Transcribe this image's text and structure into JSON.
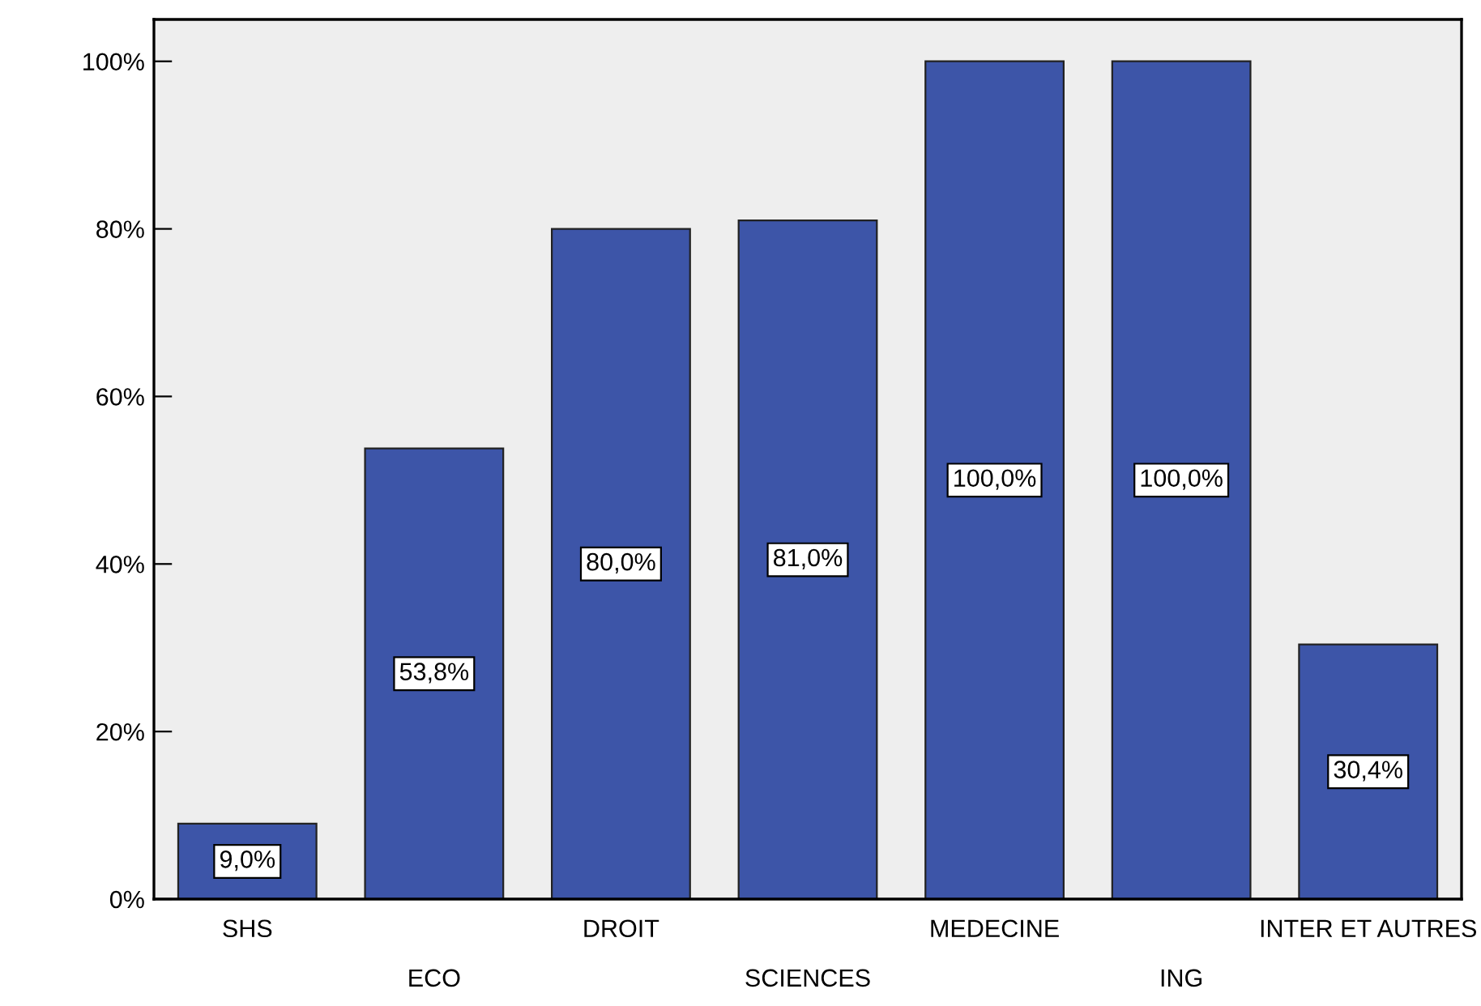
{
  "chart_data": {
    "type": "bar",
    "categories": [
      "SHS",
      "ECO",
      "DROIT",
      "SCIENCES",
      "MEDECINE",
      "ING",
      "INTER ET AUTRES"
    ],
    "values": [
      9.0,
      53.8,
      80.0,
      81.0,
      100.0,
      100.0,
      30.4
    ],
    "value_labels": [
      "9,0%",
      "53,8%",
      "80,0%",
      "81,0%",
      "100,0%",
      "100,0%",
      "30,4%"
    ],
    "color": "#3d55a8",
    "ylim": [
      0,
      105
    ],
    "yticks": [
      {
        "value": 0,
        "label": "0%"
      },
      {
        "value": 20,
        "label": "20%"
      },
      {
        "value": 40,
        "label": "40%"
      },
      {
        "value": 60,
        "label": "60%"
      },
      {
        "value": 80,
        "label": "80%"
      },
      {
        "value": 100,
        "label": "100%"
      }
    ],
    "grid": false
  }
}
